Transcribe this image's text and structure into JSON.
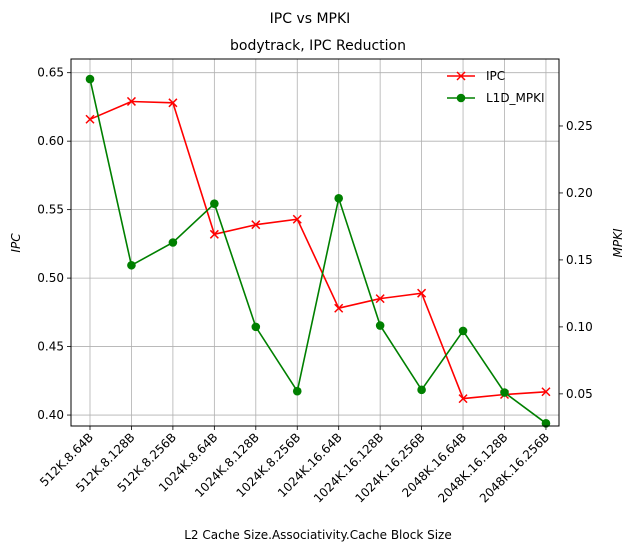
{
  "chart_data": {
    "type": "line",
    "suptitle": "IPC vs MPKI",
    "title": "bodytrack, IPC Reduction",
    "xlabel": "L2 Cache Size.Associativity.Cache Block Size",
    "ylabel_left": "IPC",
    "ylabel_right": "MPKI",
    "categories": [
      "512K.8.64B",
      "512K.8.128B",
      "512K.8.256B",
      "1024K.8.64B",
      "1024K.8.128B",
      "1024K.8.256B",
      "1024K.16.64B",
      "1024K.16.128B",
      "1024K.16.256B",
      "2048K.16.64B",
      "2048K.16.128B",
      "2048K.16.256B"
    ],
    "ylim_left": [
      0.392,
      0.66
    ],
    "ylim_right": [
      0.026,
      0.3
    ],
    "yticks_left": [
      "0.40",
      "0.45",
      "0.50",
      "0.55",
      "0.60",
      "0.65"
    ],
    "yticks_right": [
      "0.05",
      "0.10",
      "0.15",
      "0.20",
      "0.25"
    ],
    "grid": true,
    "legend_position": "top-right",
    "series": [
      {
        "name": "IPC",
        "axis": "left",
        "color": "#ff0000",
        "marker": "x",
        "values": [
          0.616,
          0.629,
          0.628,
          0.532,
          0.539,
          0.543,
          0.478,
          0.485,
          0.489,
          0.412,
          0.415,
          0.417
        ]
      },
      {
        "name": "L1D_MPKI",
        "axis": "right",
        "color": "#008000",
        "marker": "o",
        "values": [
          0.285,
          0.146,
          0.163,
          0.192,
          0.1,
          0.052,
          0.196,
          0.101,
          0.053,
          0.097,
          0.051,
          0.028
        ]
      }
    ]
  }
}
